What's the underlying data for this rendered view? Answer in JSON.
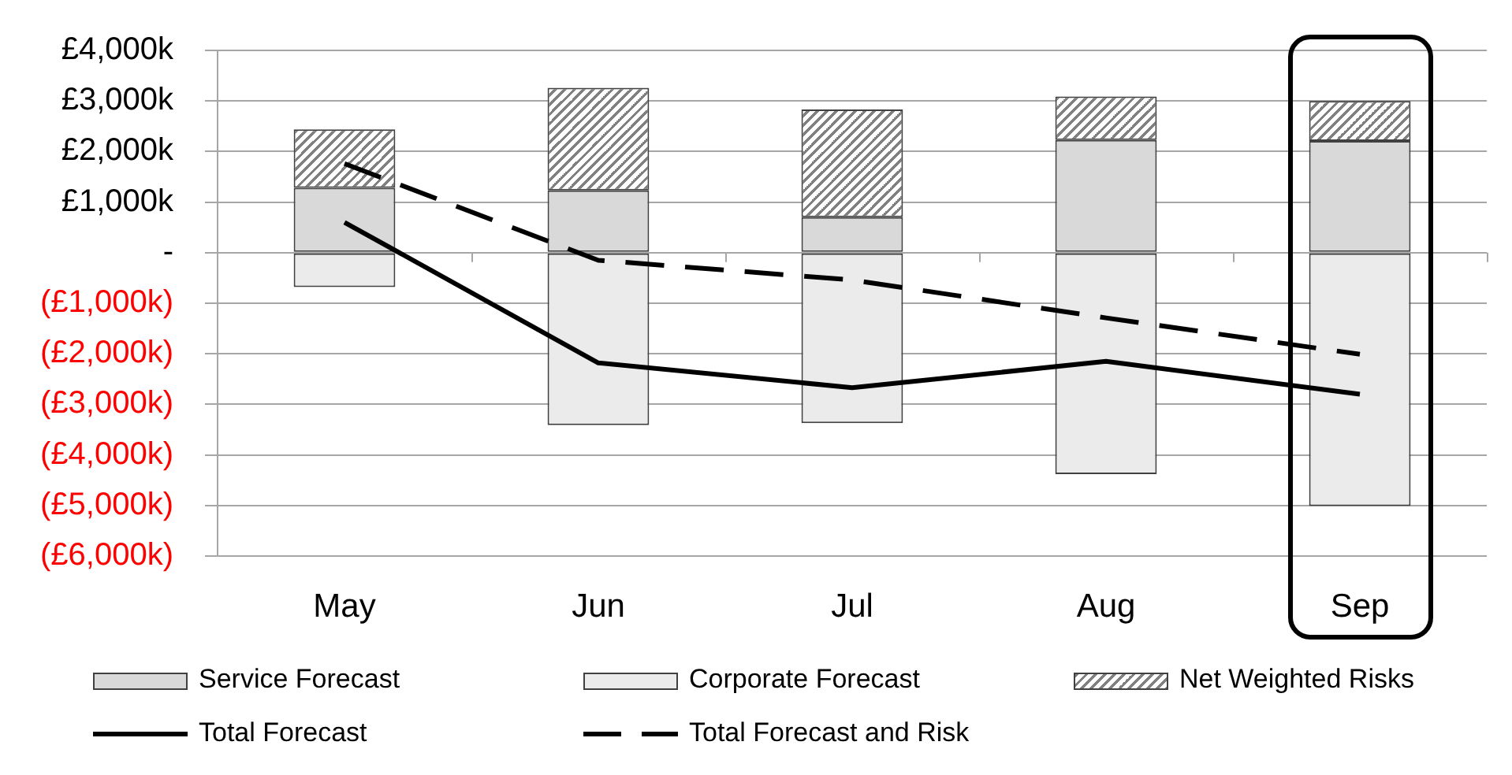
{
  "chart_data": {
    "type": "bar",
    "categories": [
      "May",
      "Jun",
      "Jul",
      "Aug",
      "Sep"
    ],
    "series": [
      {
        "name": "Service Forecast",
        "type": "bar",
        "color": "#d9d9d9",
        "values": [
          1280,
          1230,
          700,
          2230,
          2210
        ]
      },
      {
        "name": "Corporate Forecast",
        "type": "bar",
        "color": "#ebebeb",
        "values": [
          -680,
          -3410,
          -3370,
          -4380,
          -5010
        ]
      },
      {
        "name": "Net Weighted Risks",
        "type": "bar",
        "color": "#808080",
        "values": [
          1160,
          2030,
          2130,
          860,
          790
        ]
      },
      {
        "name": "Total Forecast",
        "type": "line",
        "color": "#000000",
        "line_style": "solid",
        "values": [
          600,
          -2180,
          -2670,
          -2150,
          -2800
        ]
      },
      {
        "name": "Total Forecast and Risk",
        "type": "line",
        "color": "#000000",
        "line_style": "dashed",
        "values": [
          1760,
          -150,
          -540,
          -1290,
          -2010
        ]
      }
    ],
    "stacked": true,
    "ylim": [
      -6000,
      4000
    ],
    "yticks": [
      {
        "value": 4000,
        "label": "£4,000k"
      },
      {
        "value": 3000,
        "label": "£3,000k"
      },
      {
        "value": 2000,
        "label": "£2,000k"
      },
      {
        "value": 1000,
        "label": "£1,000k"
      },
      {
        "value": 0,
        "label": "-"
      },
      {
        "value": -1000,
        "label": "(£1,000k)"
      },
      {
        "value": -2000,
        "label": "(£2,000k)"
      },
      {
        "value": -3000,
        "label": "(£3,000k)"
      },
      {
        "value": -4000,
        "label": "(£4,000k)"
      },
      {
        "value": -5000,
        "label": "(£5,000k)"
      },
      {
        "value": -6000,
        "label": "(£6,000k)"
      }
    ],
    "grid": "y",
    "legend": "bottom"
  }
}
